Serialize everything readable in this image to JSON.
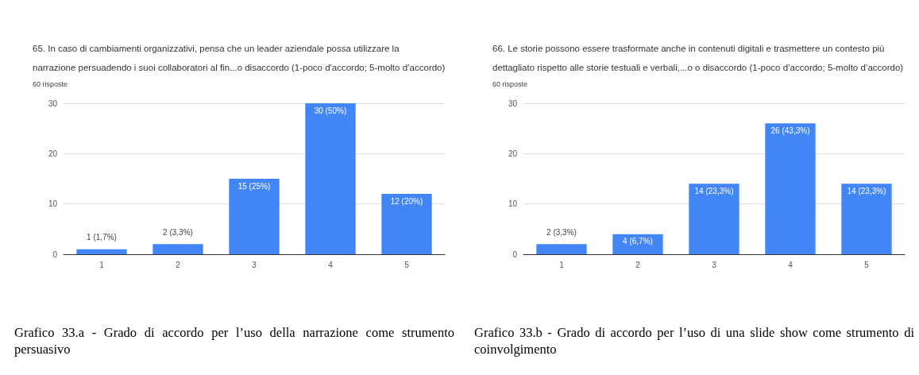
{
  "chart_data": [
    {
      "type": "bar",
      "title": "65. In caso di cambiamenti organizzativi, pensa che un leader aziendale possa utilizzare la\nnarrazione persuadendo i suoi collaboratori al fin...o disaccordo (1-poco d'accordo; 5-molto d’accordo)",
      "subtitle": "60 risposte",
      "categories": [
        "1",
        "2",
        "3",
        "4",
        "5"
      ],
      "values": [
        1,
        2,
        15,
        30,
        12
      ],
      "value_labels": [
        "1 (1,7%)",
        "2 (3,3%)",
        "15 (25%)",
        "30 (50%)",
        "12 (20%)"
      ],
      "color": "#4285f4",
      "ylim": [
        0,
        30
      ],
      "yticks": [
        0,
        10,
        20,
        30
      ],
      "grid": "y",
      "annotations": [
        "Grafico 33.a - Grado di accordo per l’uso della narrazione come strumento persuasivo"
      ]
    },
    {
      "type": "bar",
      "title": "66. Le storie possono essere trasformate anche in contenuti digitali e trasmettere un contesto più\ndettagliato rispetto alle storie testuali e verbali,...o o disaccordo (1-poco d’accordo; 5-molto d’accordo)",
      "subtitle": "60 risposte",
      "categories": [
        "1",
        "2",
        "3",
        "4",
        "5"
      ],
      "values": [
        2,
        4,
        14,
        26,
        14
      ],
      "value_labels": [
        "2 (3,3%)",
        "4 (6,7%)",
        "14 (23,3%)",
        "26 (43,3%)",
        "14 (23,3%)"
      ],
      "color": "#4285f4",
      "ylim": [
        0,
        30
      ],
      "yticks": [
        0,
        10,
        20,
        30
      ],
      "grid": "y",
      "annotations": [
        "Grafico 33.b - Grado di accordo per l’uso di una slide show come strumento di coinvolgimento"
      ]
    }
  ]
}
